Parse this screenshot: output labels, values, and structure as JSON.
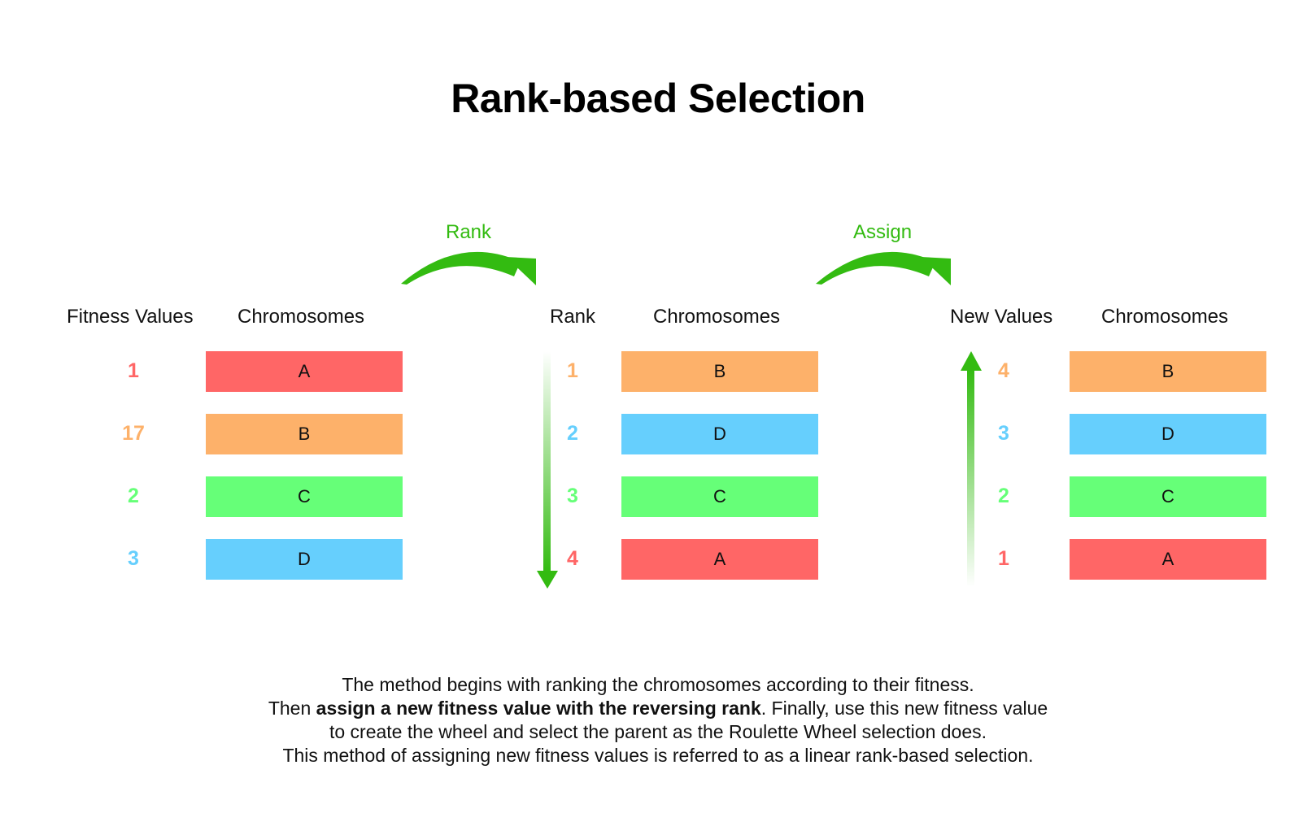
{
  "title": "Rank-based Selection",
  "colors": {
    "red": "#ff6666",
    "orange": "#fdb16a",
    "green": "#66ff78",
    "blue": "#66cffd",
    "arrow": "#33bb11"
  },
  "steps": {
    "rank_label": "Rank",
    "assign_label": "Assign"
  },
  "panel1": {
    "value_header": "Fitness Values",
    "chromosome_header": "Chromosomes",
    "rows": [
      {
        "value": "1",
        "chromosome": "A",
        "color": "red"
      },
      {
        "value": "17",
        "chromosome": "B",
        "color": "orange"
      },
      {
        "value": "2",
        "chromosome": "C",
        "color": "green"
      },
      {
        "value": "3",
        "chromosome": "D",
        "color": "blue"
      }
    ]
  },
  "panel2": {
    "value_header": "Rank",
    "chromosome_header": "Chromosomes",
    "rows": [
      {
        "value": "1",
        "chromosome": "B",
        "color": "orange"
      },
      {
        "value": "2",
        "chromosome": "D",
        "color": "blue"
      },
      {
        "value": "3",
        "chromosome": "C",
        "color": "green"
      },
      {
        "value": "4",
        "chromosome": "A",
        "color": "red"
      }
    ]
  },
  "panel3": {
    "value_header": "New Values",
    "chromosome_header": "Chromosomes",
    "rows": [
      {
        "value": "4",
        "chromosome": "B",
        "color": "orange"
      },
      {
        "value": "3",
        "chromosome": "D",
        "color": "blue"
      },
      {
        "value": "2",
        "chromosome": "C",
        "color": "green"
      },
      {
        "value": "1",
        "chromosome": "A",
        "color": "red"
      }
    ]
  },
  "description": {
    "line1": "The method begins with ranking the chromosomes according to their fitness.",
    "line2_pre": "Then ",
    "line2_bold": "assign a new fitness value with the reversing rank",
    "line2_post": ". Finally, use this new fitness value",
    "line3": "to create the wheel and select the parent as the Roulette Wheel selection does.",
    "line4": "This method of assigning new fitness values is referred to as a linear rank-based selection."
  }
}
